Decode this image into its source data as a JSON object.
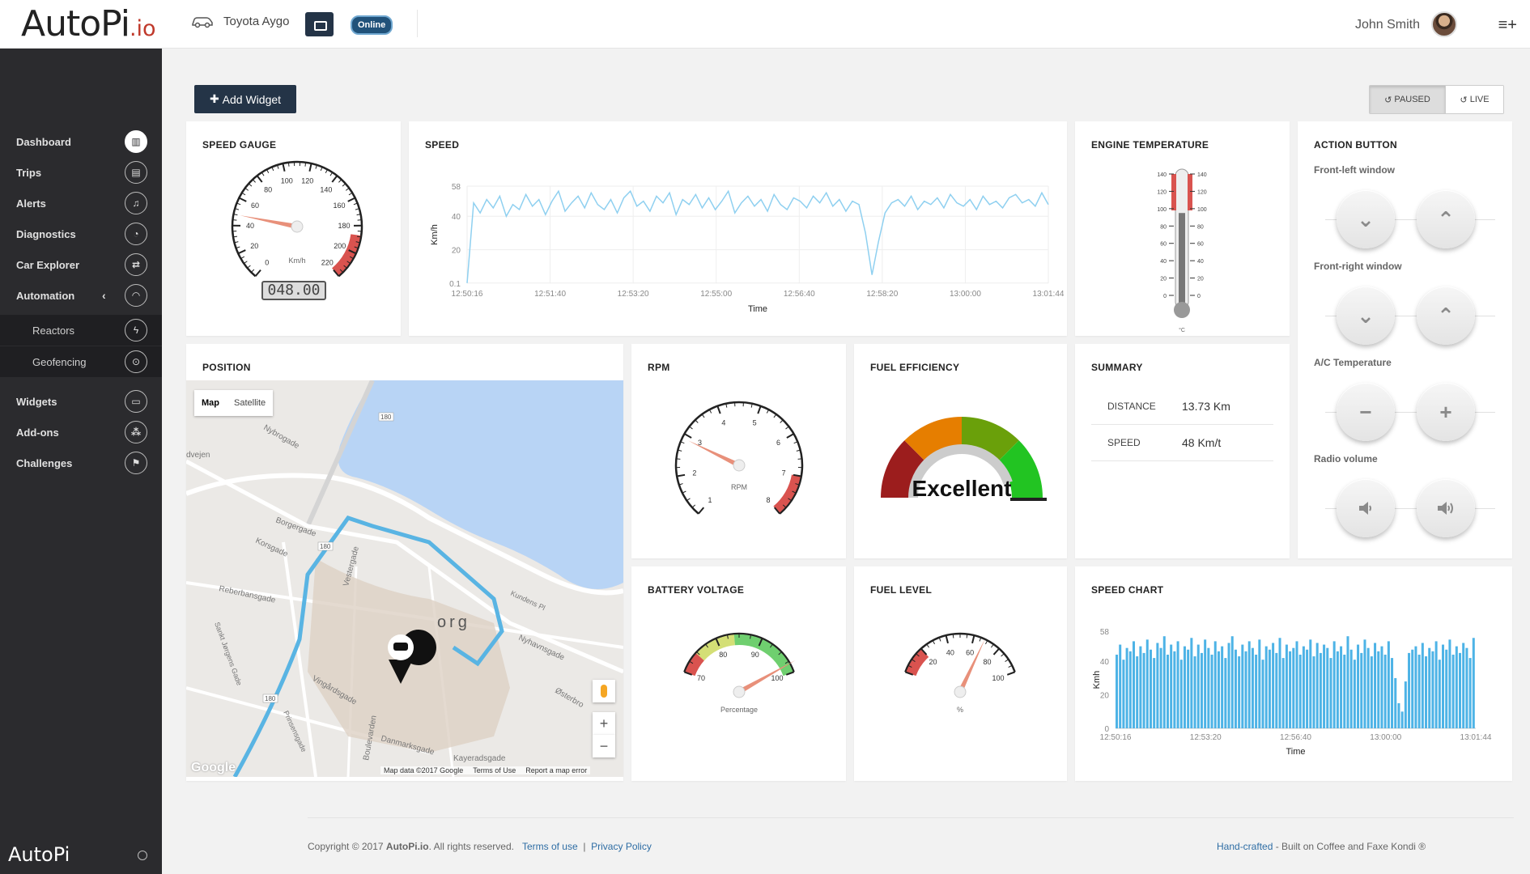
{
  "app": {
    "logo_main": "AutoPi",
    "logo_suffix": ".io",
    "vehicle": "Toyota Aygo",
    "status": "Online",
    "user": "John Smith"
  },
  "sidebar": {
    "items": [
      {
        "label": "Dashboard"
      },
      {
        "label": "Trips"
      },
      {
        "label": "Alerts"
      },
      {
        "label": "Diagnostics"
      },
      {
        "label": "Car Explorer"
      },
      {
        "label": "Automation"
      },
      {
        "label": "Reactors"
      },
      {
        "label": "Geofencing"
      },
      {
        "label": "Widgets"
      },
      {
        "label": "Add-ons"
      },
      {
        "label": "Challenges"
      }
    ],
    "footer": "AutoPi"
  },
  "toolbar": {
    "add_widget": "Add Widget",
    "paused": "PAUSED",
    "live": "LIVE"
  },
  "speed_gauge": {
    "title": "SPEED GAUGE",
    "unit": "Km/h",
    "readout": "048.00",
    "value": 48,
    "min": 0,
    "max": 220,
    "ticks": [
      "0",
      "20",
      "40",
      "60",
      "80",
      "100",
      "120",
      "140",
      "160",
      "180",
      "200",
      "220"
    ]
  },
  "speed_line": {
    "title": "SPEED",
    "chart_data": {
      "type": "line",
      "ylabel": "Km/h",
      "xlabel": "Time",
      "yticks": [
        "0.1",
        "20",
        "40",
        "58"
      ],
      "xticks": [
        "12:50:16",
        "12:51:40",
        "12:53:20",
        "12:55:00",
        "12:56:40",
        "12:58:20",
        "13:00:00",
        "13:01:44"
      ],
      "ylim": [
        0,
        58
      ],
      "values": [
        0.1,
        48,
        42,
        50,
        45,
        52,
        40,
        47,
        44,
        53,
        46,
        50,
        41,
        49,
        55,
        43,
        48,
        52,
        45,
        54,
        47,
        44,
        50,
        42,
        51,
        55,
        46,
        49,
        43,
        52,
        48,
        54,
        41,
        50,
        47,
        53,
        45,
        51,
        44,
        49,
        55,
        42,
        48,
        52,
        46,
        50,
        43,
        53,
        47,
        44,
        51,
        49,
        45,
        52,
        48,
        54,
        46,
        50,
        43,
        49,
        47,
        30,
        5,
        25,
        42,
        48,
        50,
        46,
        52,
        44,
        49,
        47,
        51,
        45,
        53,
        48,
        46,
        50,
        44,
        52,
        47,
        49,
        45,
        51,
        53,
        48,
        50,
        46,
        54,
        47
      ]
    }
  },
  "engine_temp": {
    "title": "ENGINE TEMPERATURE",
    "unit": "°C",
    "ticks": [
      "140",
      "120",
      "100",
      "80",
      "60",
      "40",
      "20",
      "0"
    ],
    "value": 95
  },
  "action_button": {
    "title": "ACTION BUTTON",
    "groups": [
      {
        "label": "Front-left window",
        "left": "down-chevron-icon",
        "right": "up-chevron-icon"
      },
      {
        "label": "Front-right window",
        "left": "down-chevron-icon",
        "right": "up-chevron-icon"
      },
      {
        "label": "A/C Temperature",
        "left": "minus-icon",
        "right": "plus-icon"
      },
      {
        "label": "Radio volume",
        "left": "volume-down-icon",
        "right": "volume-up-icon"
      }
    ]
  },
  "position": {
    "title": "POSITION",
    "map_tab": "Map",
    "satellite_tab": "Satellite",
    "attribution": [
      "Map data ©2017 Google",
      "Terms of Use",
      "Report a map error"
    ],
    "logo": "Google",
    "labels": [
      "Nybrogade",
      "Borgergade",
      "Korsgade",
      "Reberbansgade",
      "Vestergade",
      "Vingårdsgade",
      "Boulevarden",
      "Danmarksgade",
      "Kayeradsgade",
      "Nyhavnsgade",
      "Østerbro",
      "Kundens Pl",
      "dvejen",
      "180",
      "180",
      "180",
      "org",
      "Sankt Jørgens Gade",
      "Prinsensgade"
    ]
  },
  "rpm": {
    "title": "RPM",
    "unit": "RPM",
    "ticks": [
      "1",
      "2",
      "3",
      "4",
      "5",
      "6",
      "7",
      "8"
    ],
    "value": 2.9,
    "min": 1,
    "max": 8
  },
  "fuel_efficiency": {
    "title": "FUEL EFFICIENCY",
    "rating": "Excellent",
    "value": 0.9
  },
  "summary": {
    "title": "SUMMARY",
    "rows": [
      {
        "k": "DISTANCE",
        "v": "13.73 Km"
      },
      {
        "k": "SPEED",
        "v": "48 Km/t"
      }
    ]
  },
  "battery": {
    "title": "BATTERY VOLTAGE",
    "unit": "Percentage",
    "ticks": [
      "70",
      "80",
      "90",
      "100"
    ],
    "value": 98,
    "min": 70,
    "max": 100
  },
  "fuel_level": {
    "title": "FUEL LEVEL",
    "unit": "%",
    "ticks": [
      "20",
      "40",
      "60",
      "80",
      "100"
    ],
    "value": 68,
    "min": 0,
    "max": 100
  },
  "speed_chart": {
    "title": "SPEED CHART",
    "chart_data": {
      "type": "bar",
      "ylabel": "Kmh",
      "xlabel": "Time",
      "yticks": [
        "0",
        "20",
        "40",
        "58"
      ],
      "xticks": [
        "12:50:16",
        "12:53:20",
        "12:56:40",
        "13:00:00",
        "13:01:44"
      ],
      "ylim": [
        0,
        58
      ],
      "values": [
        44,
        50,
        41,
        48,
        46,
        52,
        43,
        49,
        45,
        53,
        47,
        42,
        51,
        48,
        55,
        44,
        50,
        46,
        52,
        41,
        49,
        47,
        54,
        43,
        50,
        45,
        53,
        48,
        44,
        52,
        46,
        49,
        42,
        51,
        55,
        47,
        43,
        50,
        46,
        52,
        48,
        44,
        53,
        41,
        49,
        47,
        51,
        45,
        54,
        42,
        50,
        46,
        48,
        52,
        44,
        49,
        47,
        53,
        43,
        51,
        45,
        50,
        48,
        42,
        52,
        46,
        49,
        44,
        55,
        47,
        41,
        50,
        45,
        53,
        48,
        43,
        51,
        46,
        49,
        44,
        52,
        42,
        30,
        15,
        10,
        28,
        45,
        47,
        49,
        44,
        51,
        43,
        48,
        46,
        52,
        41,
        50,
        47,
        53,
        44,
        49,
        45,
        51,
        48,
        42,
        54
      ]
    }
  },
  "footer": {
    "copyright": "Copyright © 2017 ",
    "brand": "AutoPi.io",
    "rights": ". All rights reserved.",
    "terms": "Terms of use",
    "sep": "|",
    "privacy": "Privacy Policy",
    "handcrafted": "Hand-crafted",
    "built": " - Built on Coffee and Faxe Kondi ®"
  },
  "colors": {
    "navy": "#243447",
    "sidebar": "#2b2b2e",
    "line": "#8fd0f0",
    "bar": "#4db3e6",
    "route": "#59b4e3"
  }
}
